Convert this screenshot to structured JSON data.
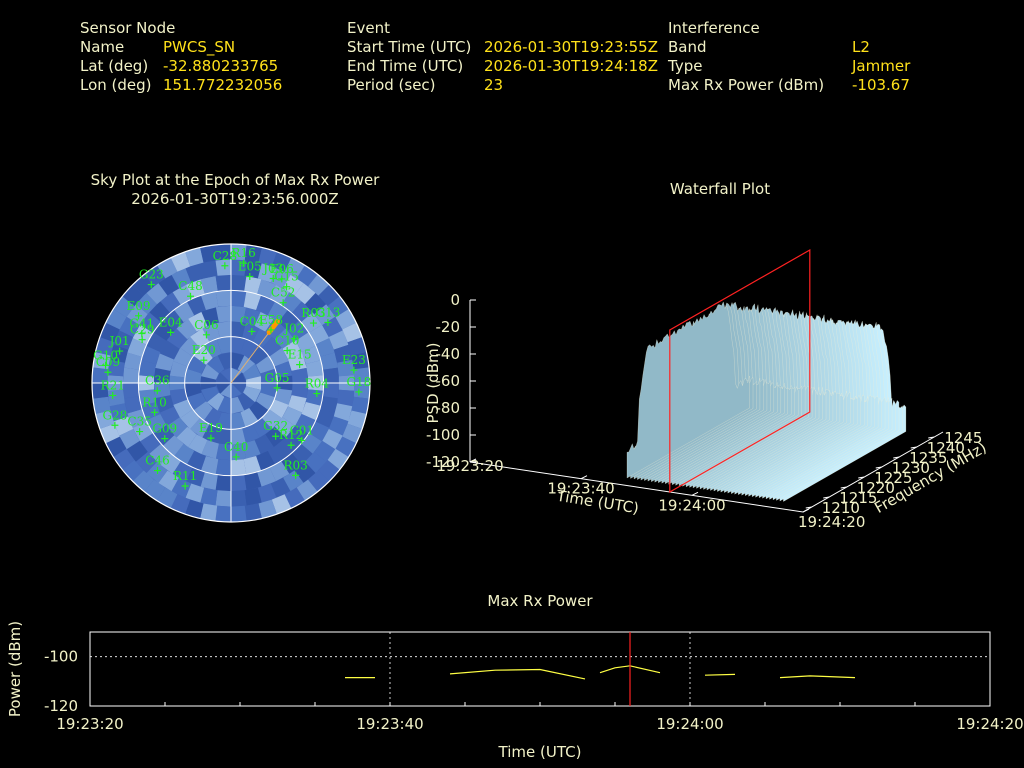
{
  "info": {
    "sensor": {
      "heading": "Sensor Node",
      "rows": [
        {
          "label": "Name",
          "value": "PWCS_SN"
        },
        {
          "label": "Lat (deg)",
          "value": "-32.880233765"
        },
        {
          "label": "Lon (deg)",
          "value": "151.772232056"
        }
      ]
    },
    "event": {
      "heading": "Event",
      "rows": [
        {
          "label": "Start Time (UTC)",
          "value": "2026-01-30T19:23:55Z"
        },
        {
          "label": "End Time (UTC)",
          "value": "2026-01-30T19:24:18Z"
        },
        {
          "label": "Period (sec)",
          "value": "23"
        }
      ]
    },
    "interference": {
      "heading": "Interference",
      "rows": [
        {
          "label": "Band",
          "value": "L2"
        },
        {
          "label": "Type",
          "value": "Jammer"
        },
        {
          "label": "Max Rx Power (dBm)",
          "value": "-103.67"
        }
      ]
    }
  },
  "colors": {
    "label": "#f2f2c8",
    "value": "#ffe11a",
    "satellite": "#22ee22",
    "marker": "#ff2222",
    "trace": "#ffff44",
    "jammer": "#ff9900"
  },
  "chart_data": [
    {
      "type": "scatter",
      "title": "Sky Plot at the Epoch of Max Rx Power",
      "subtitle": "2026-01-30T19:23:56.000Z",
      "projection": "polar",
      "elevation_rings_deg": [
        30,
        60
      ],
      "satellites": [
        {
          "id": "G23",
          "az": 321,
          "el": 8
        },
        {
          "id": "C28",
          "az": 357,
          "el": 14
        },
        {
          "id": "R16",
          "az": 6,
          "el": 12
        },
        {
          "id": "E05",
          "az": 10,
          "el": 20
        },
        {
          "id": "J03",
          "az": 22,
          "el": 17
        },
        {
          "id": "E06",
          "az": 26,
          "el": 15
        },
        {
          "id": "C15",
          "az": 30,
          "el": 18
        },
        {
          "id": "C52",
          "az": 33,
          "el": 28
        },
        {
          "id": "R03",
          "az": 54,
          "el": 24
        },
        {
          "id": "G13",
          "az": 58,
          "el": 16
        },
        {
          "id": "C48",
          "az": 335,
          "el": 28
        },
        {
          "id": "E09",
          "az": 306,
          "el": 16
        },
        {
          "id": "G41",
          "az": 299,
          "el": 24
        },
        {
          "id": "C29",
          "az": 296,
          "el": 26
        },
        {
          "id": "E04",
          "az": 310,
          "el": 39
        },
        {
          "id": "C06",
          "az": 333,
          "el": 55
        },
        {
          "id": "C04",
          "az": 22,
          "el": 54
        },
        {
          "id": "E58",
          "az": 37,
          "el": 47
        },
        {
          "id": "J02",
          "az": 55,
          "el": 40
        },
        {
          "id": "C10",
          "az": 60,
          "el": 48
        },
        {
          "id": "E15",
          "az": 75,
          "el": 44
        },
        {
          "id": "E23",
          "az": 84,
          "el": 10
        },
        {
          "id": "G18",
          "az": 94,
          "el": 7
        },
        {
          "id": "R04",
          "az": 97,
          "el": 34
        },
        {
          "id": "G05",
          "az": 96,
          "el": 60
        },
        {
          "id": "C36",
          "az": 264,
          "el": 42
        },
        {
          "id": "J01",
          "az": 286,
          "el": 15
        },
        {
          "id": "G10",
          "az": 278,
          "el": 8
        },
        {
          "id": "C09",
          "az": 275,
          "el": 10
        },
        {
          "id": "E20",
          "az": 310,
          "el": 67
        },
        {
          "id": "R21",
          "az": 264,
          "el": 13
        },
        {
          "id": "G28",
          "az": 250,
          "el": 10
        },
        {
          "id": "C35",
          "az": 242,
          "el": 23
        },
        {
          "id": "R10",
          "az": 249,
          "el": 37
        },
        {
          "id": "G09",
          "az": 230,
          "el": 34
        },
        {
          "id": "R11",
          "az": 204,
          "el": 17
        },
        {
          "id": "C46",
          "az": 220,
          "el": 16
        },
        {
          "id": "G32",
          "az": 140,
          "el": 45
        },
        {
          "id": "C01",
          "az": 129,
          "el": 31
        },
        {
          "id": "R12",
          "az": 136,
          "el": 34
        },
        {
          "id": "E19",
          "az": 200,
          "el": 52
        },
        {
          "id": "C40",
          "az": 176,
          "el": 42
        },
        {
          "id": "R03",
          "az": 145,
          "el": 17
        }
      ],
      "jammer_direction": {
        "az": 37,
        "el_from": 40,
        "el_to": 49
      }
    },
    {
      "type": "area",
      "title": "Waterfall Plot",
      "xlabel": "Time (UTC)",
      "ylabel": "Frequency (MHz)",
      "zlabel": "PSD (dBm)",
      "time_ticks": [
        "19:23:20",
        "19:23:40",
        "19:24:00",
        "19:24:20"
      ],
      "freq_ticks": [
        1210,
        1215,
        1220,
        1225,
        1230,
        1235,
        1240,
        1245
      ],
      "psd_ticks": [
        0,
        -20,
        -40,
        -60,
        -80,
        -100,
        -120
      ],
      "zlim": [
        -120,
        0
      ],
      "marker_time": "19:23:56",
      "signal_band_mhz": [
        1215,
        1240
      ],
      "approx_peak_psd": -30,
      "approx_floor_psd": -100
    },
    {
      "type": "line",
      "title": "Max Rx Power",
      "xlabel": "Time (UTC)",
      "ylabel": "Power (dBm)",
      "x_ticks": [
        "19:23:20",
        "19:23:40",
        "19:24:00",
        "19:24:20"
      ],
      "y_ticks": [
        -100,
        -120
      ],
      "ylim": [
        -120,
        -90
      ],
      "x_range_sec": [
        0,
        60
      ],
      "marker_sec": 36,
      "segments": [
        {
          "x": [
            17,
            19
          ],
          "y": [
            -108.5,
            -108.5
          ]
        },
        {
          "x": [
            24,
            27,
            30,
            33
          ],
          "y": [
            -107,
            -105.5,
            -105.2,
            -109
          ]
        },
        {
          "x": [
            34,
            35,
            36,
            38
          ],
          "y": [
            -106.5,
            -104.5,
            -103.7,
            -106.5
          ]
        },
        {
          "x": [
            41,
            43
          ],
          "y": [
            -107.5,
            -107.2
          ]
        },
        {
          "x": [
            46,
            48,
            51
          ],
          "y": [
            -108.5,
            -107.8,
            -108.5
          ]
        }
      ]
    }
  ]
}
